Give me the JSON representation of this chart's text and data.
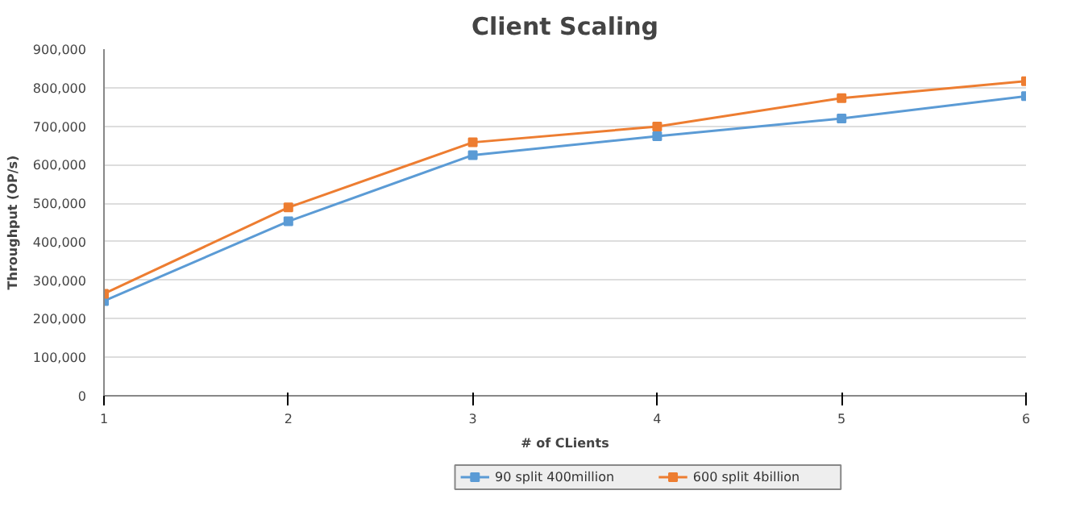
{
  "chart_data": {
    "type": "line",
    "title": "Client Scaling",
    "xlabel": "# of CLients",
    "ylabel": "Throughput (OP/s)",
    "x": [
      1,
      2,
      3,
      4,
      5,
      6
    ],
    "series": [
      {
        "name": "90 split 400million",
        "color": "#5b9bd5",
        "values": [
          246000,
          453000,
          625000,
          674000,
          720000,
          778000
        ]
      },
      {
        "name": "600 split 4billion",
        "color": "#ed7d31",
        "values": [
          265000,
          489000,
          658000,
          699000,
          773000,
          817000
        ]
      }
    ],
    "xlim": [
      1,
      6
    ],
    "xticks": [
      1,
      2,
      3,
      4,
      5,
      6
    ],
    "ylim": [
      0,
      900000
    ],
    "yticks": [
      {
        "value": 0,
        "label": "0"
      },
      {
        "value": 100000,
        "label": "100,000"
      },
      {
        "value": 200000,
        "label": "200,000"
      },
      {
        "value": 300000,
        "label": "300,000"
      },
      {
        "value": 400000,
        "label": "400,000"
      },
      {
        "value": 500000,
        "label": "500,000"
      },
      {
        "value": 600000,
        "label": "600,000"
      },
      {
        "value": 700000,
        "label": "700,000"
      },
      {
        "value": 800000,
        "label": "800,000"
      },
      {
        "value": 900000,
        "label": "900,000"
      }
    ],
    "grid": "y",
    "legend": "bottom",
    "marker": "square",
    "line_style": "solid"
  }
}
